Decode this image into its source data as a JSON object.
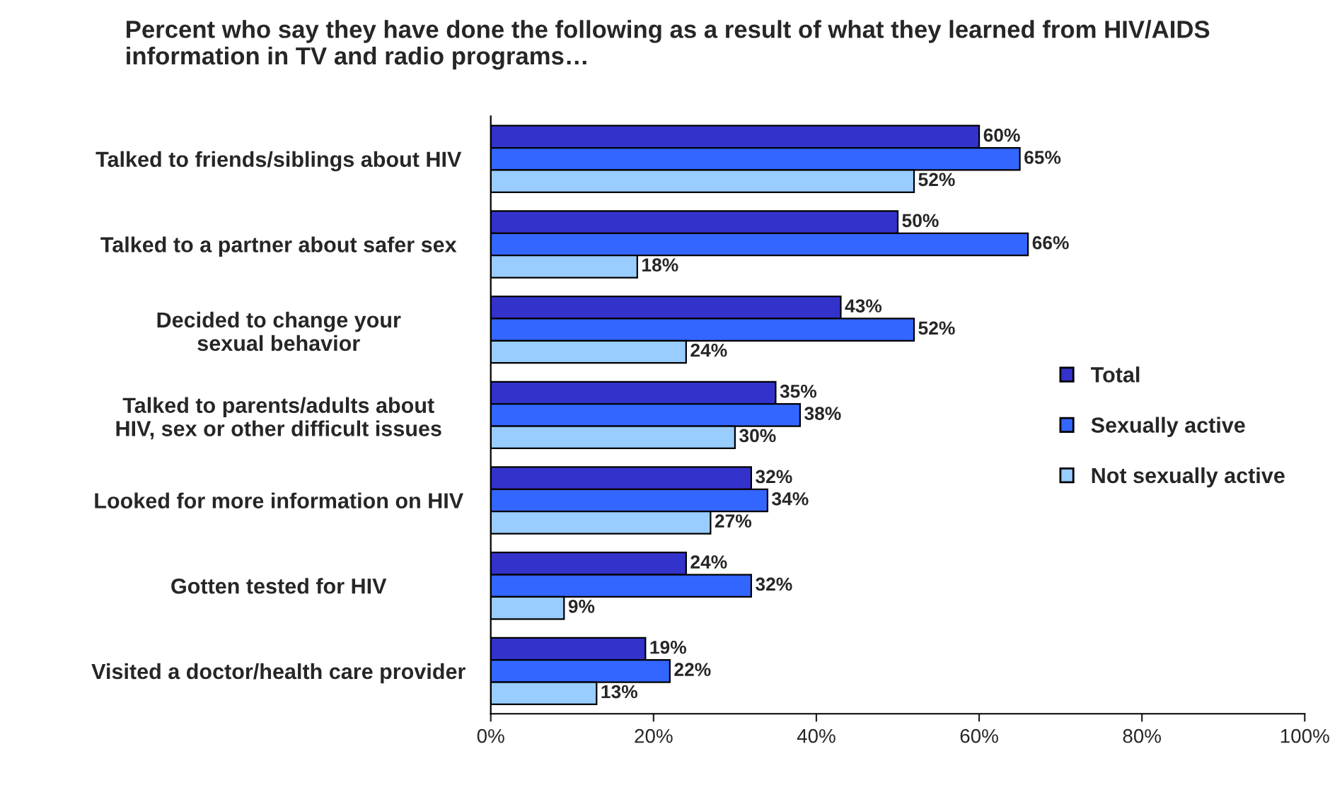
{
  "chart_data": {
    "type": "bar",
    "orientation": "horizontal",
    "title": "Percent who say they have done the following as a result of what they learned from HIV/AIDS information in TV and radio programs…",
    "categories": [
      "Talked to friends/siblings about HIV",
      "Talked to a partner about safer sex",
      "Decided to change your\nsexual behavior",
      "Talked to parents/adults about\nHIV, sex or other difficult issues",
      "Looked for more information on HIV",
      "Gotten tested for HIV",
      "Visited a doctor/health care provider"
    ],
    "series": [
      {
        "name": "Total",
        "color": "#3333cc",
        "values": [
          60,
          50,
          43,
          35,
          32,
          24,
          19
        ],
        "value_labels": [
          "60%",
          "50%",
          "43%",
          "35%",
          "32%",
          "24%",
          "19%"
        ]
      },
      {
        "name": "Sexually active",
        "color": "#3366ff",
        "values": [
          65,
          66,
          52,
          38,
          34,
          32,
          22
        ],
        "value_labels": [
          "65%",
          "66%",
          "52%",
          "38%",
          "34%",
          "32%",
          "22%"
        ]
      },
      {
        "name": "Not sexually active",
        "color": "#99ccff",
        "values": [
          52,
          18,
          24,
          30,
          27,
          9,
          13
        ],
        "value_labels": [
          "52%",
          "18%",
          "24%",
          "30%",
          "27%",
          "9%",
          "13%"
        ]
      }
    ],
    "xlim": [
      0,
      100
    ],
    "xticks": [
      {
        "value": 0,
        "label": "0%"
      },
      {
        "value": 20,
        "label": "20%"
      },
      {
        "value": 40,
        "label": "40%"
      },
      {
        "value": 60,
        "label": "60%"
      },
      {
        "value": 80,
        "label": "80%"
      },
      {
        "value": 100,
        "label": "100%"
      }
    ],
    "grid": false,
    "legend": "right"
  }
}
